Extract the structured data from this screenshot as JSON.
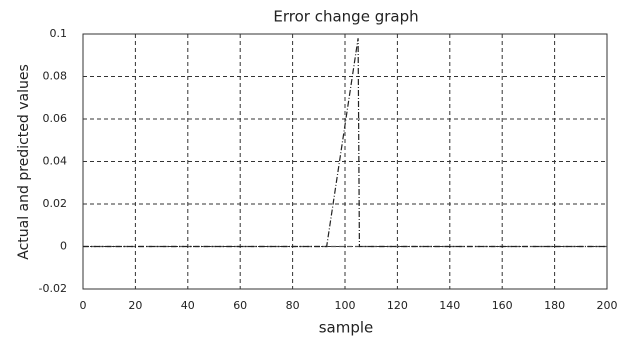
{
  "chart_data": {
    "type": "line",
    "title": "Error change graph",
    "xlabel": "sample",
    "ylabel": "Actual and predicted values",
    "x": [
      0,
      20,
      40,
      60,
      80,
      93,
      105,
      105.5,
      120,
      140,
      160,
      180,
      200
    ],
    "series": [
      {
        "color": "#555555",
        "dash": "5 3",
        "values": [
          0,
          0,
          0,
          0,
          0,
          0,
          0,
          0,
          0,
          0,
          0,
          0,
          0
        ]
      },
      {
        "color": "#222222",
        "dash": "6 2 1 2",
        "values": [
          0,
          0,
          0,
          0,
          0,
          0,
          0.098,
          0,
          0,
          0,
          0,
          0,
          0
        ]
      }
    ],
    "xlim": [
      0,
      200
    ],
    "xticks": [
      0,
      20,
      40,
      60,
      80,
      100,
      120,
      140,
      160,
      180,
      200
    ],
    "ylim": [
      -0.02,
      0.1
    ],
    "yticks": [
      -0.02,
      0,
      0.02,
      0.04,
      0.06,
      0.08,
      0.1
    ],
    "grid": true
  }
}
